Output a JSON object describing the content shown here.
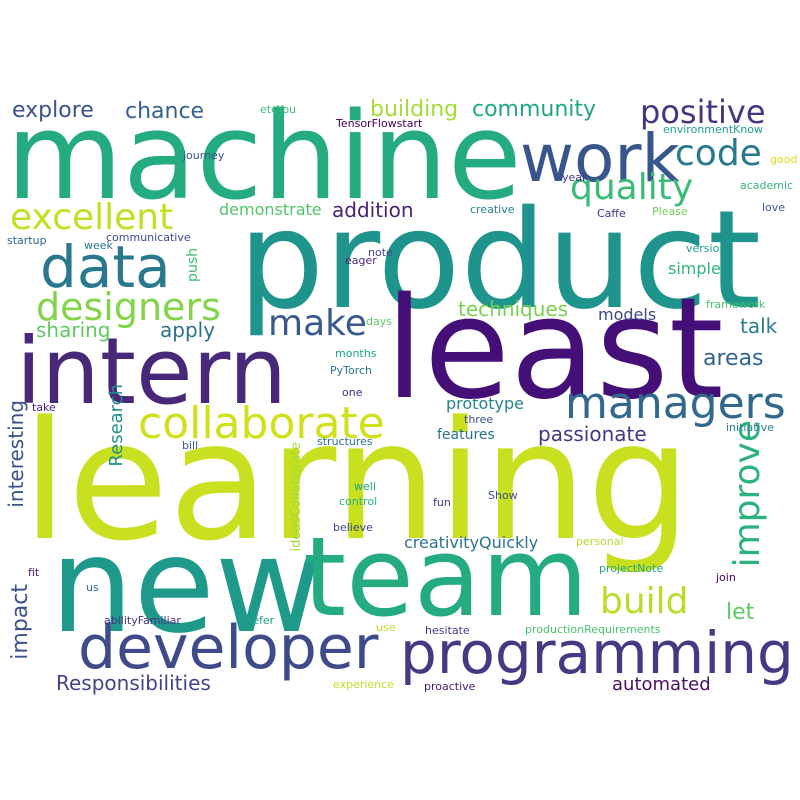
{
  "words": [
    {
      "text": "learning",
      "color": "#c8e020"
    },
    {
      "text": "product",
      "color": "#1f948c"
    },
    {
      "text": "machine",
      "color": "#25ab82"
    },
    {
      "text": "least",
      "color": "#440f76"
    },
    {
      "text": "new",
      "color": "#1f9a8a"
    },
    {
      "text": "team",
      "color": "#25ab82"
    },
    {
      "text": "intern",
      "color": "#482878"
    },
    {
      "text": "developer",
      "color": "#3e4a89"
    },
    {
      "text": "programming",
      "color": "#443a83"
    },
    {
      "text": "work",
      "color": "#39568c"
    },
    {
      "text": "data",
      "color": "#2a788e"
    },
    {
      "text": "managers",
      "color": "#31688e"
    },
    {
      "text": "collaborate",
      "color": "#d0e11c"
    },
    {
      "text": "designers",
      "color": "#84d44b"
    },
    {
      "text": "excellent",
      "color": "#c2df23"
    },
    {
      "text": "quality",
      "color": "#3bbb75"
    },
    {
      "text": "code",
      "color": "#2a788e"
    },
    {
      "text": "positive",
      "color": "#463480"
    },
    {
      "text": "improve",
      "color": "#2db27d"
    },
    {
      "text": "build",
      "color": "#b8de29"
    },
    {
      "text": "make",
      "color": "#38598c"
    },
    {
      "text": "explore",
      "color": "#3b528b"
    },
    {
      "text": "chance",
      "color": "#355f8d"
    },
    {
      "text": "building",
      "color": "#a5db36"
    },
    {
      "text": "community",
      "color": "#22a785"
    },
    {
      "text": "addition",
      "color": "#482475"
    },
    {
      "text": "demonstrate",
      "color": "#52c569"
    },
    {
      "text": "sharing",
      "color": "#5ec962"
    },
    {
      "text": "apply",
      "color": "#2d718e"
    },
    {
      "text": "techniques",
      "color": "#7ad151"
    },
    {
      "text": "passionate",
      "color": "#453781"
    },
    {
      "text": "areas",
      "color": "#33638d"
    },
    {
      "text": "talk",
      "color": "#287d8e"
    },
    {
      "text": "models",
      "color": "#3f4889"
    },
    {
      "text": "simple",
      "color": "#31b57b"
    },
    {
      "text": "let",
      "color": "#5ec962"
    },
    {
      "text": "automated",
      "color": "#471063"
    },
    {
      "text": "Responsibilities",
      "color": "#414487"
    },
    {
      "text": "creativityQuickly",
      "color": "#2c728e"
    },
    {
      "text": "prototype",
      "color": "#25858e"
    },
    {
      "text": "features",
      "color": "#2c728e"
    },
    {
      "text": "impact",
      "color": "#3b528b"
    },
    {
      "text": "interesting",
      "color": "#3b528b"
    },
    {
      "text": "Research",
      "color": "#21918c"
    },
    {
      "text": "push",
      "color": "#3bbb75"
    },
    {
      "text": "etcYou",
      "color": "#3dbc74"
    },
    {
      "text": "TensorFlowstart",
      "color": "#440154"
    },
    {
      "text": "environmentKnow",
      "color": "#1f9e89"
    },
    {
      "text": "journey",
      "color": "#39558c"
    },
    {
      "text": "good",
      "color": "#d8e219"
    },
    {
      "text": "year",
      "color": "#443983"
    },
    {
      "text": "academic",
      "color": "#35b779"
    },
    {
      "text": "creative",
      "color": "#26828e"
    },
    {
      "text": "Caffe",
      "color": "#46307e"
    },
    {
      "text": "Please",
      "color": "#6ece58"
    },
    {
      "text": "love",
      "color": "#38598c"
    },
    {
      "text": "startup",
      "color": "#31688e"
    },
    {
      "text": "week",
      "color": "#2d708e"
    },
    {
      "text": "communicative",
      "color": "#3e4989"
    },
    {
      "text": "eager",
      "color": "#482677"
    },
    {
      "text": "note",
      "color": "#3e4c8a"
    },
    {
      "text": "version",
      "color": "#1fa088"
    },
    {
      "text": "framework",
      "color": "#48c16e"
    },
    {
      "text": "days",
      "color": "#5ec962"
    },
    {
      "text": "months",
      "color": "#1fa187"
    },
    {
      "text": "PyTorch",
      "color": "#2a788e"
    },
    {
      "text": "one",
      "color": "#472d7b"
    },
    {
      "text": "take",
      "color": "#481f70"
    },
    {
      "text": "three",
      "color": "#3b528b"
    },
    {
      "text": "initiative",
      "color": "#27808e"
    },
    {
      "text": "structures",
      "color": "#2c718e"
    },
    {
      "text": "bill",
      "color": "#3b528b"
    },
    {
      "text": "ideasCollaborate",
      "color": "#a2da37"
    },
    {
      "text": "well",
      "color": "#20a386"
    },
    {
      "text": "control",
      "color": "#2ab07f"
    },
    {
      "text": "fun",
      "color": "#472f7d"
    },
    {
      "text": "Show",
      "color": "#3a548c"
    },
    {
      "text": "believe",
      "color": "#3f4788"
    },
    {
      "text": "personal",
      "color": "#b5de2b"
    },
    {
      "text": "fit",
      "color": "#482173"
    },
    {
      "text": "us",
      "color": "#2d708e"
    },
    {
      "text": "projectNote",
      "color": "#22a884"
    },
    {
      "text": "join",
      "color": "#450559"
    },
    {
      "text": "abilityFamiliar",
      "color": "#46327e"
    },
    {
      "text": "prefer",
      "color": "#1f9e89"
    },
    {
      "text": "use",
      "color": "#bddf26"
    },
    {
      "text": "hesitate",
      "color": "#433d84"
    },
    {
      "text": "productionRequirements",
      "color": "#4ac16d"
    },
    {
      "text": "experience",
      "color": "#bddf26"
    },
    {
      "text": "proactive",
      "color": "#481a6c"
    }
  ]
}
